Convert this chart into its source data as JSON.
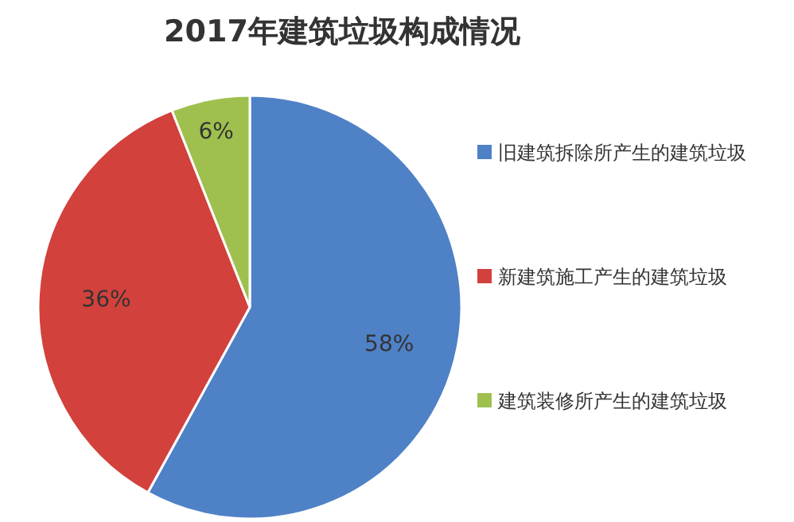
{
  "chart_data": {
    "type": "pie",
    "title": "2017年建筑垃圾构成情况",
    "categories": [
      "旧建筑拆除所产生的建筑垃圾",
      "新建筑施工产生的建筑垃圾",
      "建筑装修所产生的建筑垃圾"
    ],
    "values": [
      58,
      36,
      6
    ],
    "colors": [
      "#4f81c6",
      "#d2413c",
      "#9fc04e"
    ],
    "value_labels": [
      "58%",
      "36%",
      "6%"
    ],
    "legend": "right"
  }
}
